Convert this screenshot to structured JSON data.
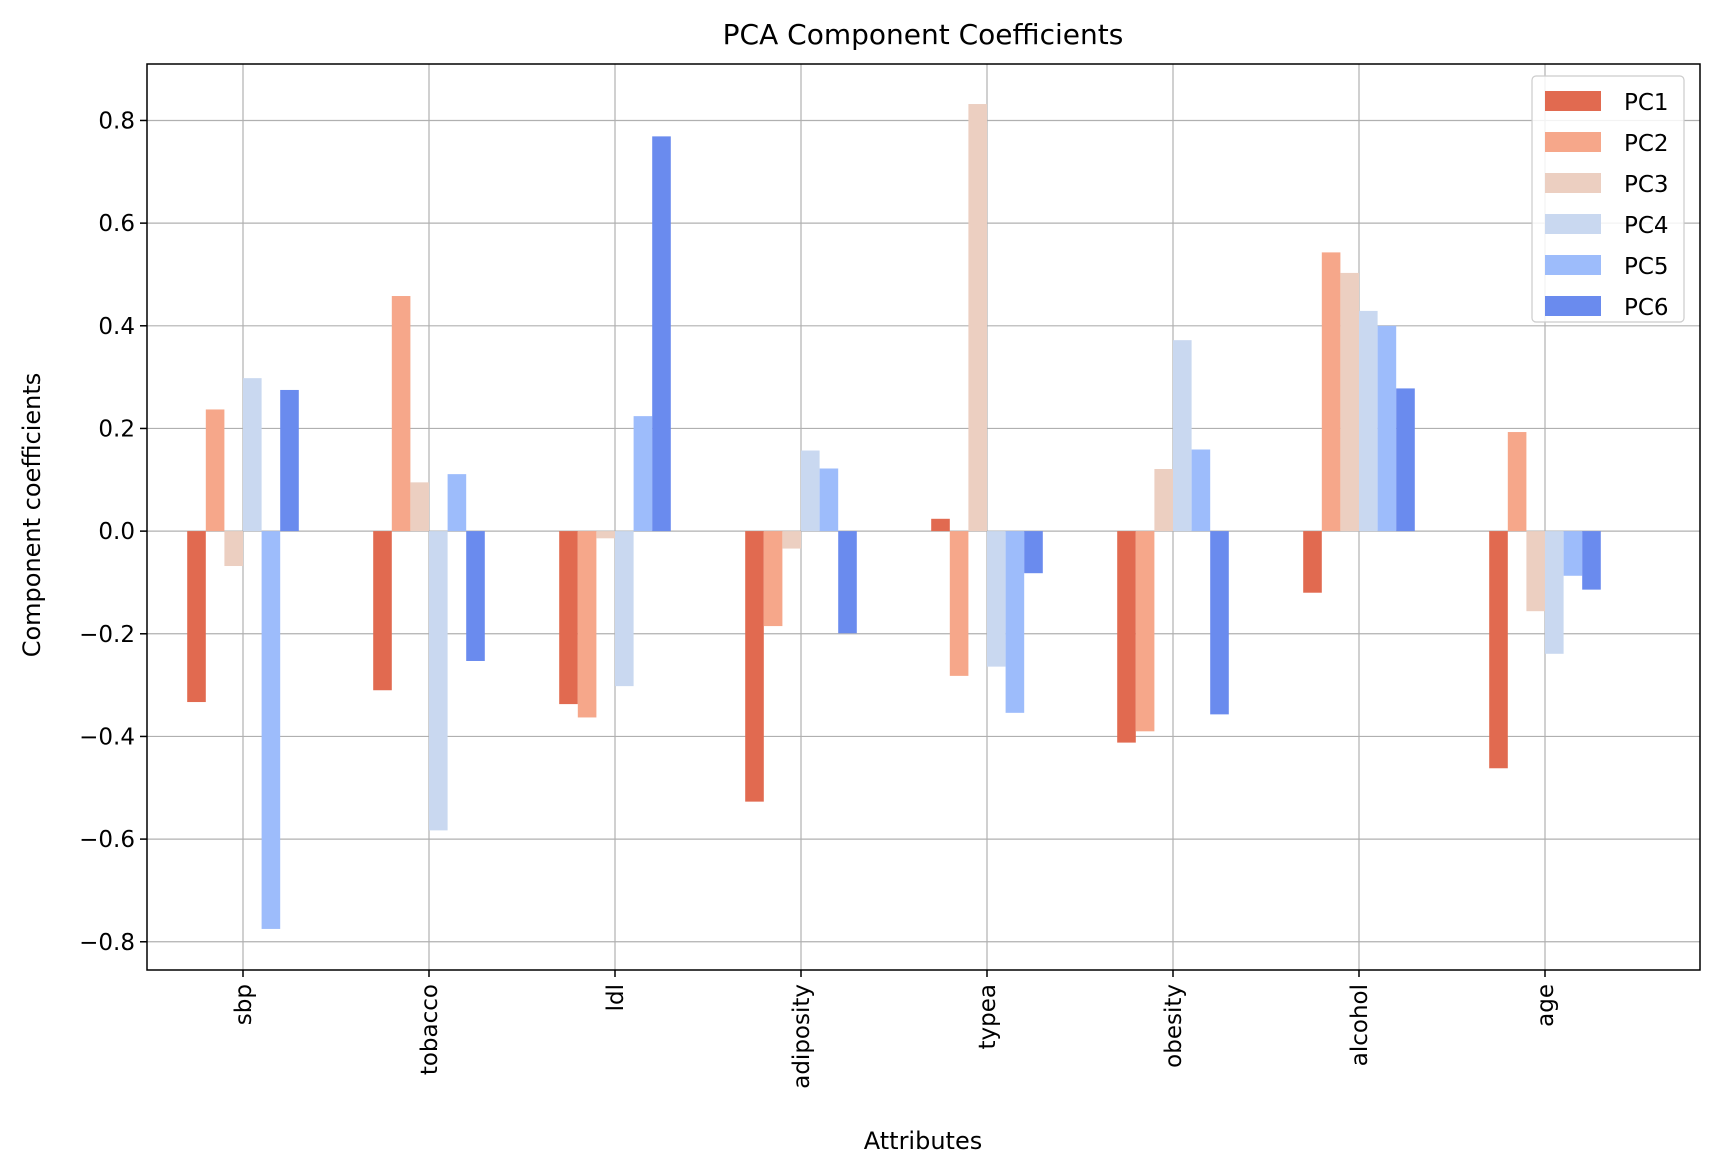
{
  "chart_data": {
    "type": "bar",
    "title": "PCA Component Coefficients",
    "xlabel": "Attributes",
    "ylabel": "Component coefficients",
    "categories": [
      "sbp",
      "tobacco",
      "ldl",
      "adiposity",
      "typea",
      "obesity",
      "alcohol",
      "age"
    ],
    "series": [
      {
        "name": "PC1",
        "color": "#e16a50",
        "values": [
          -0.333,
          -0.31,
          -0.337,
          -0.527,
          0.024,
          -0.412,
          -0.12,
          -0.462
        ]
      },
      {
        "name": "PC2",
        "color": "#f6a78a",
        "values": [
          0.237,
          0.458,
          -0.363,
          -0.185,
          -0.282,
          -0.39,
          0.543,
          0.193
        ]
      },
      {
        "name": "PC3",
        "color": "#eccfc1",
        "values": [
          -0.068,
          0.095,
          -0.014,
          -0.034,
          0.832,
          0.121,
          0.503,
          -0.156
        ]
      },
      {
        "name": "PC4",
        "color": "#c9d8f0",
        "values": [
          0.298,
          -0.583,
          -0.302,
          0.157,
          -0.264,
          0.372,
          0.429,
          -0.239
        ]
      },
      {
        "name": "PC5",
        "color": "#9dbcfb",
        "values": [
          -0.775,
          0.111,
          0.224,
          0.122,
          -0.354,
          0.159,
          0.4,
          -0.087
        ]
      },
      {
        "name": "PC6",
        "color": "#6a8bee",
        "values": [
          0.275,
          -0.253,
          0.769,
          -0.199,
          -0.082,
          -0.357,
          0.278,
          -0.114
        ]
      }
    ],
    "yticks": [
      "0.8",
      "0.6",
      "0.4",
      "0.2",
      "0.0",
      "−0.2",
      "−0.4",
      "−0.6",
      "−0.8"
    ],
    "ytick_values": [
      0.8,
      0.6,
      0.4,
      0.2,
      0.0,
      -0.2,
      -0.4,
      -0.6,
      -0.8
    ],
    "ylim": [
      -0.855,
      0.91
    ],
    "grid": true,
    "legend_position": "top-right"
  }
}
